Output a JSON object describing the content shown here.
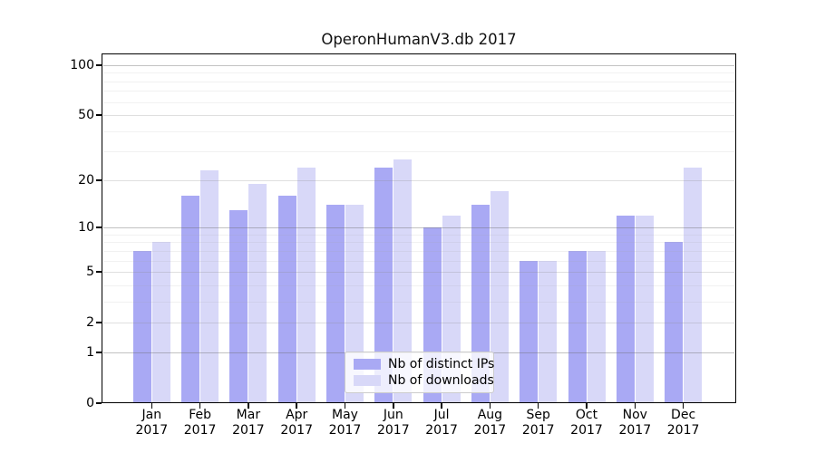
{
  "title": "OperonHumanV3.db 2017",
  "colors": {
    "distinct_ips": "#a9a9f4",
    "downloads": "#d8d8f8",
    "axis": "#000000",
    "background": "#ffffff"
  },
  "chart_data": {
    "type": "bar",
    "title": "OperonHumanV3.db 2017",
    "months": [
      "Jan",
      "Feb",
      "Mar",
      "Apr",
      "May",
      "Jun",
      "Jul",
      "Aug",
      "Sep",
      "Oct",
      "Nov",
      "Dec"
    ],
    "year": "2017",
    "categories": [
      "Jan 2017",
      "Feb 2017",
      "Mar 2017",
      "Apr 2017",
      "May 2017",
      "Jun 2017",
      "Jul 2017",
      "Aug 2017",
      "Sep 2017",
      "Oct 2017",
      "Nov 2017",
      "Dec 2017"
    ],
    "series": [
      {
        "name": "Nb of distinct IPs",
        "color": "#a9a9f4",
        "values": [
          7,
          16,
          13,
          16,
          14,
          24,
          10,
          14,
          6,
          7,
          12,
          8
        ]
      },
      {
        "name": "Nb of downloads",
        "color": "#d8d8f8",
        "values": [
          8,
          23,
          19,
          24,
          14,
          27,
          12,
          17,
          6,
          7,
          12,
          24
        ]
      }
    ],
    "xlabel": "",
    "ylabel": "",
    "y_axis": {
      "scale": "log1p",
      "ticks": [
        100,
        50,
        20,
        10,
        5,
        2,
        1,
        0
      ],
      "minor_gridlines": [
        3,
        4,
        6,
        7,
        8,
        9,
        30,
        40,
        60,
        70,
        80,
        90
      ],
      "range": [
        0,
        115
      ]
    },
    "grid": "horizontal",
    "legend": {
      "entries": [
        "Nb of distinct IPs",
        "Nb of downloads"
      ],
      "position": "inside-lower-center"
    }
  }
}
